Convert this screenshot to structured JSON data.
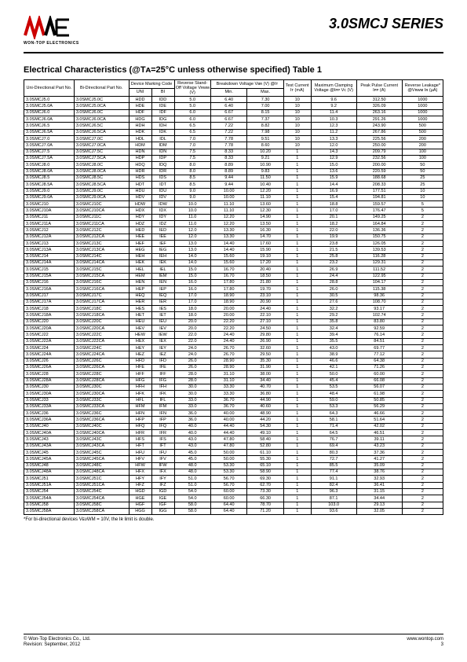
{
  "series_title": "3.0SMCJ  SERIES",
  "logo_text": "WON-TOP ELECTRONICS",
  "section_title": "Electrical Characteristics (@Tᴀ=25°C unless otherwise specified) Table 1",
  "footnote": "*For bi-directional devices VᴇᴜWM = 10V, the Iʀ limit is double.",
  "footer": {
    "left1": "© Won-Top Electronics Co., Ltd.",
    "left2": "Revision: September, 2012",
    "right1": "www.wontop.com",
    "right2": "3"
  },
  "headers": {
    "uni": "Uni-Directional Part No.",
    "bi": "Bi-Directional Part No.",
    "device": "Device Marking Code",
    "device_uni": "UNI",
    "device_bi": "BI",
    "vrwm": "Reverse Stand-Off Voltage Vʀᴡᴍ (V)",
    "bv": "Breakdown Voltage Vʙʀ (V) @Iᴛ",
    "bv_min": "Min.",
    "bv_max": "Max.",
    "it": "Test Current Iᴛ (mA)",
    "vc": "Maximum Clamping Voltage @Iᴘᴘ Vᴄ (V)",
    "ipp": "Peak Pulse Current Iᴘᴘ (A)",
    "ir": "Reverse Leakage* @Vʀᴡᴍ Iʀ (µA)"
  },
  "colwidths": [
    "11%",
    "12%",
    "5%",
    "5%",
    "8%",
    "8%",
    "8%",
    "6%",
    "10%",
    "10%",
    "9%"
  ],
  "groups": [
    [
      [
        "3.0SMCJ5.0",
        "3.0SMCJ5.0C",
        "HDD",
        "IDD",
        "5.0",
        "6.40",
        "7.30",
        "10",
        "9.6",
        "312.50",
        "1000"
      ],
      [
        "3.0SMCJ5.0A",
        "3.0SMCJ5.0CA",
        "HDE",
        "IDE",
        "5.0",
        "6.40",
        "7.00",
        "10",
        "9.2",
        "326.09",
        "1000"
      ],
      [
        "3.0SMCJ6.0",
        "3.0SMCJ6.0C",
        "HDF",
        "IDF",
        "6.0",
        "6.67",
        "8.15",
        "10",
        "11.4",
        "263.16",
        "1000"
      ],
      [
        "3.0SMCJ6.0A",
        "3.0SMCJ6.0CA",
        "HDG",
        "IDG",
        "6.0",
        "6.67",
        "7.37",
        "10",
        "10.3",
        "291.26",
        "1000"
      ]
    ],
    [
      [
        "3.0SMCJ6.5",
        "3.0SMCJ6.5C",
        "HDH",
        "IDH",
        "6.5",
        "7.22",
        "8.82",
        "10",
        "12.3",
        "243.90",
        "500"
      ],
      [
        "3.0SMCJ6.5A",
        "3.0SMCJ6.5CA",
        "HDK",
        "IDK",
        "6.5",
        "7.22",
        "7.98",
        "10",
        "11.2",
        "267.86",
        "500"
      ],
      [
        "3.0SMCJ7.0",
        "3.0SMCJ7.0C",
        "HDL",
        "IDL",
        "7.0",
        "7.78",
        "9.51",
        "10",
        "13.3",
        "225.56",
        "200"
      ],
      [
        "3.0SMCJ7.0A",
        "3.0SMCJ7.0CA",
        "HDM",
        "IDM",
        "7.0",
        "7.78",
        "8.60",
        "10",
        "12.0",
        "250.00",
        "200"
      ]
    ],
    [
      [
        "3.0SMCJ7.5",
        "3.0SMCJ7.5C",
        "HDN",
        "IDN",
        "7.5",
        "8.33",
        "10.20",
        "1",
        "14.3",
        "209.79",
        "100"
      ],
      [
        "3.0SMCJ7.5A",
        "3.0SMCJ7.5CA",
        "HDP",
        "IDP",
        "7.5",
        "8.33",
        "9.21",
        "1",
        "12.9",
        "232.56",
        "100"
      ],
      [
        "3.0SMCJ8.0",
        "3.0SMCJ8.0C",
        "HDQ",
        "IDQ",
        "8.0",
        "8.89",
        "10.90",
        "1",
        "15.0",
        "200.00",
        "50"
      ],
      [
        "3.0SMCJ8.0A",
        "3.0SMCJ8.0CA",
        "HDR",
        "IDR",
        "8.0",
        "8.89",
        "9.83",
        "1",
        "13.6",
        "220.59",
        "50"
      ]
    ],
    [
      [
        "3.0SMCJ8.5",
        "3.0SMCJ8.5C",
        "HDS",
        "IDS",
        "8.5",
        "9.44",
        "11.50",
        "1",
        "15.9",
        "188.68",
        "25"
      ],
      [
        "3.0SMCJ8.5A",
        "3.0SMCJ8.5CA",
        "HDT",
        "IDT",
        "8.5",
        "9.44",
        "10.40",
        "1",
        "14.4",
        "208.33",
        "25"
      ],
      [
        "3.0SMCJ9.0",
        "3.0SMCJ9.0C",
        "HDU",
        "IDU",
        "9.0",
        "10.00",
        "12.20",
        "1",
        "16.9",
        "177.51",
        "10"
      ],
      [
        "3.0SMCJ9.0A",
        "3.0SMCJ9.0CA",
        "HDV",
        "IDV",
        "9.0",
        "10.00",
        "11.10",
        "1",
        "15.4",
        "194.81",
        "10"
      ]
    ],
    [
      [
        "3.0SMCJ10",
        "3.0SMCJ10C",
        "HDW",
        "IDW",
        "10.0",
        "11.10",
        "13.60",
        "1",
        "18.8",
        "159.57",
        "5"
      ],
      [
        "3.0SMCJ10A",
        "3.0SMCJ10CA",
        "HDX",
        "IDX",
        "10.0",
        "11.10",
        "12.30",
        "1",
        "17.0",
        "176.47",
        "5"
      ],
      [
        "3.0SMCJ11",
        "3.0SMCJ11C",
        "HDY",
        "IDY",
        "11.0",
        "12.20",
        "14.90",
        "1",
        "20.1",
        "149.25",
        "2"
      ],
      [
        "3.0SMCJ11A",
        "3.0SMCJ11CA",
        "HDZ",
        "IDZ",
        "11.0",
        "12.20",
        "13.50",
        "1",
        "18.2",
        "164.84",
        "2"
      ]
    ],
    [
      [
        "3.0SMCJ12",
        "3.0SMCJ12C",
        "HED",
        "IED",
        "12.0",
        "13.30",
        "16.30",
        "1",
        "22.0",
        "136.36",
        "2"
      ],
      [
        "3.0SMCJ12A",
        "3.0SMCJ12CA",
        "HEE",
        "IEE",
        "12.0",
        "13.30",
        "14.70",
        "1",
        "19.9",
        "150.75",
        "2"
      ],
      [
        "3.0SMCJ13",
        "3.0SMCJ13C",
        "HEF",
        "IEF",
        "13.0",
        "14.40",
        "17.60",
        "1",
        "23.8",
        "126.05",
        "2"
      ],
      [
        "3.0SMCJ13A",
        "3.0SMCJ13CA",
        "HEG",
        "IEG",
        "13.0",
        "14.40",
        "15.90",
        "1",
        "21.5",
        "139.53",
        "2"
      ]
    ],
    [
      [
        "3.0SMCJ14",
        "3.0SMCJ14C",
        "HEH",
        "IEH",
        "14.0",
        "15.60",
        "19.10",
        "1",
        "25.8",
        "116.28",
        "2"
      ],
      [
        "3.0SMCJ14A",
        "3.0SMCJ14CA",
        "HEK",
        "IEK",
        "14.0",
        "15.60",
        "17.20",
        "1",
        "23.2",
        "129.31",
        "2"
      ],
      [
        "3.0SMCJ15",
        "3.0SMCJ15C",
        "HEL",
        "IEL",
        "15.0",
        "16.70",
        "20.40",
        "1",
        "26.9",
        "111.52",
        "2"
      ],
      [
        "3.0SMCJ15A",
        "3.0SMCJ15CA",
        "HEM",
        "IEM",
        "15.0",
        "16.70",
        "18.50",
        "1",
        "24.4",
        "122.95",
        "2"
      ]
    ],
    [
      [
        "3.0SMCJ16",
        "3.0SMCJ16C",
        "HEN",
        "IEN",
        "16.0",
        "17.80",
        "21.80",
        "1",
        "28.8",
        "104.17",
        "2"
      ],
      [
        "3.0SMCJ16A",
        "3.0SMCJ16CA",
        "HEP",
        "IEP",
        "16.0",
        "17.80",
        "19.70",
        "1",
        "26.0",
        "115.38",
        "2"
      ],
      [
        "3.0SMCJ17",
        "3.0SMCJ17C",
        "HEQ",
        "IEQ",
        "17.0",
        "18.90",
        "23.10",
        "1",
        "30.5",
        "98.36",
        "2"
      ],
      [
        "3.0SMCJ17A",
        "3.0SMCJ17CA",
        "HER",
        "IER",
        "17.0",
        "18.90",
        "20.90",
        "1",
        "27.6",
        "108.70",
        "2"
      ]
    ],
    [
      [
        "3.0SMCJ18",
        "3.0SMCJ18C",
        "HES",
        "IES",
        "18.0",
        "20.00",
        "24.40",
        "1",
        "32.2",
        "93.17",
        "2"
      ],
      [
        "3.0SMCJ18A",
        "3.0SMCJ18CA",
        "HET",
        "IET",
        "18.0",
        "20.00",
        "22.10",
        "1",
        "29.2",
        "102.74",
        "2"
      ],
      [
        "3.0SMCJ20",
        "3.0SMCJ20C",
        "HEU",
        "IEU",
        "20.0",
        "22.20",
        "27.10",
        "1",
        "35.8",
        "83.80",
        "2"
      ],
      [
        "3.0SMCJ20A",
        "3.0SMCJ20CA",
        "HEV",
        "IEV",
        "20.0",
        "22.20",
        "24.50",
        "1",
        "32.4",
        "92.59",
        "2"
      ]
    ],
    [
      [
        "3.0SMCJ22",
        "3.0SMCJ22C",
        "HEW",
        "IEW",
        "22.0",
        "24.40",
        "29.80",
        "1",
        "39.4",
        "76.14",
        "2"
      ],
      [
        "3.0SMCJ22A",
        "3.0SMCJ22CA",
        "HEX",
        "IEX",
        "22.0",
        "24.40",
        "26.90",
        "1",
        "35.5",
        "84.51",
        "2"
      ],
      [
        "3.0SMCJ24",
        "3.0SMCJ24C",
        "HEY",
        "IEY",
        "24.0",
        "26.70",
        "32.60",
        "1",
        "43.0",
        "69.77",
        "2"
      ],
      [
        "3.0SMCJ24A",
        "3.0SMCJ24CA",
        "HEZ",
        "IEZ",
        "24.0",
        "26.70",
        "29.50",
        "1",
        "38.9",
        "77.12",
        "2"
      ]
    ],
    [
      [
        "3.0SMCJ26",
        "3.0SMCJ26C",
        "HFD",
        "IFD",
        "26.0",
        "28.90",
        "35.30",
        "1",
        "46.6",
        "64.38",
        "2"
      ],
      [
        "3.0SMCJ26A",
        "3.0SMCJ26CA",
        "HFE",
        "IFE",
        "26.0",
        "28.90",
        "31.90",
        "1",
        "42.1",
        "71.26",
        "2"
      ],
      [
        "3.0SMCJ28",
        "3.0SMCJ28C",
        "HFF",
        "IFF",
        "28.0",
        "31.10",
        "38.00",
        "1",
        "50.0",
        "60.00",
        "2"
      ],
      [
        "3.0SMCJ28A",
        "3.0SMCJ28CA",
        "HFG",
        "IFG",
        "28.0",
        "31.10",
        "34.40",
        "1",
        "45.4",
        "66.08",
        "2"
      ]
    ],
    [
      [
        "3.0SMCJ30",
        "3.0SMCJ30C",
        "HFH",
        "IFH",
        "30.0",
        "33.30",
        "40.70",
        "1",
        "53.5",
        "56.07",
        "2"
      ],
      [
        "3.0SMCJ30A",
        "3.0SMCJ30CA",
        "HFK",
        "IFK",
        "30.0",
        "33.30",
        "36.80",
        "1",
        "48.4",
        "61.98",
        "2"
      ],
      [
        "3.0SMCJ33",
        "3.0SMCJ33C",
        "HFL",
        "IFL",
        "33.0",
        "36.70",
        "44.90",
        "1",
        "59.0",
        "50.85",
        "2"
      ],
      [
        "3.0SMCJ33A",
        "3.0SMCJ33CA",
        "HFM",
        "IFM",
        "33.0",
        "36.70",
        "40.60",
        "1",
        "53.3",
        "56.29",
        "2"
      ]
    ],
    [
      [
        "3.0SMCJ36",
        "3.0SMCJ36C",
        "HFN",
        "IFN",
        "36.0",
        "40.00",
        "48.90",
        "1",
        "64.3",
        "46.66",
        "2"
      ],
      [
        "3.0SMCJ36A",
        "3.0SMCJ36CA",
        "HFP",
        "IFP",
        "36.0",
        "40.00",
        "44.20",
        "1",
        "58.1",
        "51.64",
        "2"
      ],
      [
        "3.0SMCJ40",
        "3.0SMCJ40C",
        "HFQ",
        "IFQ",
        "40.0",
        "44.40",
        "54.30",
        "1",
        "71.4",
        "42.02",
        "2"
      ],
      [
        "3.0SMCJ40A",
        "3.0SMCJ40CA",
        "HFR",
        "IFR",
        "40.0",
        "44.40",
        "49.10",
        "1",
        "64.5",
        "46.51",
        "2"
      ]
    ],
    [
      [
        "3.0SMCJ43",
        "3.0SMCJ43C",
        "HFS",
        "IFS",
        "43.0",
        "47.80",
        "58.40",
        "1",
        "76.7",
        "39.11",
        "2"
      ],
      [
        "3.0SMCJ43A",
        "3.0SMCJ43CA",
        "HFT",
        "IFT",
        "43.0",
        "47.80",
        "52.80",
        "1",
        "69.4",
        "43.23",
        "2"
      ],
      [
        "3.0SMCJ45",
        "3.0SMCJ45C",
        "HFU",
        "IFU",
        "45.0",
        "50.00",
        "61.10",
        "1",
        "80.3",
        "37.36",
        "2"
      ],
      [
        "3.0SMCJ45A",
        "3.0SMCJ45CA",
        "HFV",
        "IFV",
        "45.0",
        "50.00",
        "55.30",
        "1",
        "72.7",
        "41.27",
        "2"
      ]
    ],
    [
      [
        "3.0SMCJ48",
        "3.0SMCJ48C",
        "HFW",
        "IFW",
        "48.0",
        "53.30",
        "65.10",
        "1",
        "85.5",
        "35.09",
        "2"
      ],
      [
        "3.0SMCJ48A",
        "3.0SMCJ48CA",
        "HFX",
        "IFX",
        "48.0",
        "53.30",
        "58.90",
        "1",
        "77.4",
        "38.76",
        "2"
      ],
      [
        "3.0SMCJ51",
        "3.0SMCJ51C",
        "HFY",
        "IFY",
        "51.0",
        "56.70",
        "69.30",
        "1",
        "91.1",
        "32.93",
        "2"
      ],
      [
        "3.0SMCJ51A",
        "3.0SMCJ51CA",
        "HFZ",
        "IFZ",
        "51.0",
        "56.70",
        "62.70",
        "1",
        "82.4",
        "36.41",
        "2"
      ]
    ],
    [
      [
        "3.0SMCJ54",
        "3.0SMCJ54C",
        "HGD",
        "IGD",
        "54.0",
        "60.00",
        "73.30",
        "1",
        "96.3",
        "31.15",
        "2"
      ],
      [
        "3.0SMCJ54A",
        "3.0SMCJ54CA",
        "HGE",
        "IGE",
        "54.0",
        "60.00",
        "66.30",
        "1",
        "87.1",
        "34.44",
        "2"
      ],
      [
        "3.0SMCJ58",
        "3.0SMCJ58C",
        "HGF",
        "IGF",
        "58.0",
        "64.40",
        "78.70",
        "1",
        "103.0",
        "29.13",
        "2"
      ],
      [
        "3.0SMCJ58A",
        "3.0SMCJ58CA",
        "HGG",
        "IGG",
        "58.0",
        "64.40",
        "71.20",
        "1",
        "93.6",
        "32.05",
        "2"
      ]
    ]
  ]
}
